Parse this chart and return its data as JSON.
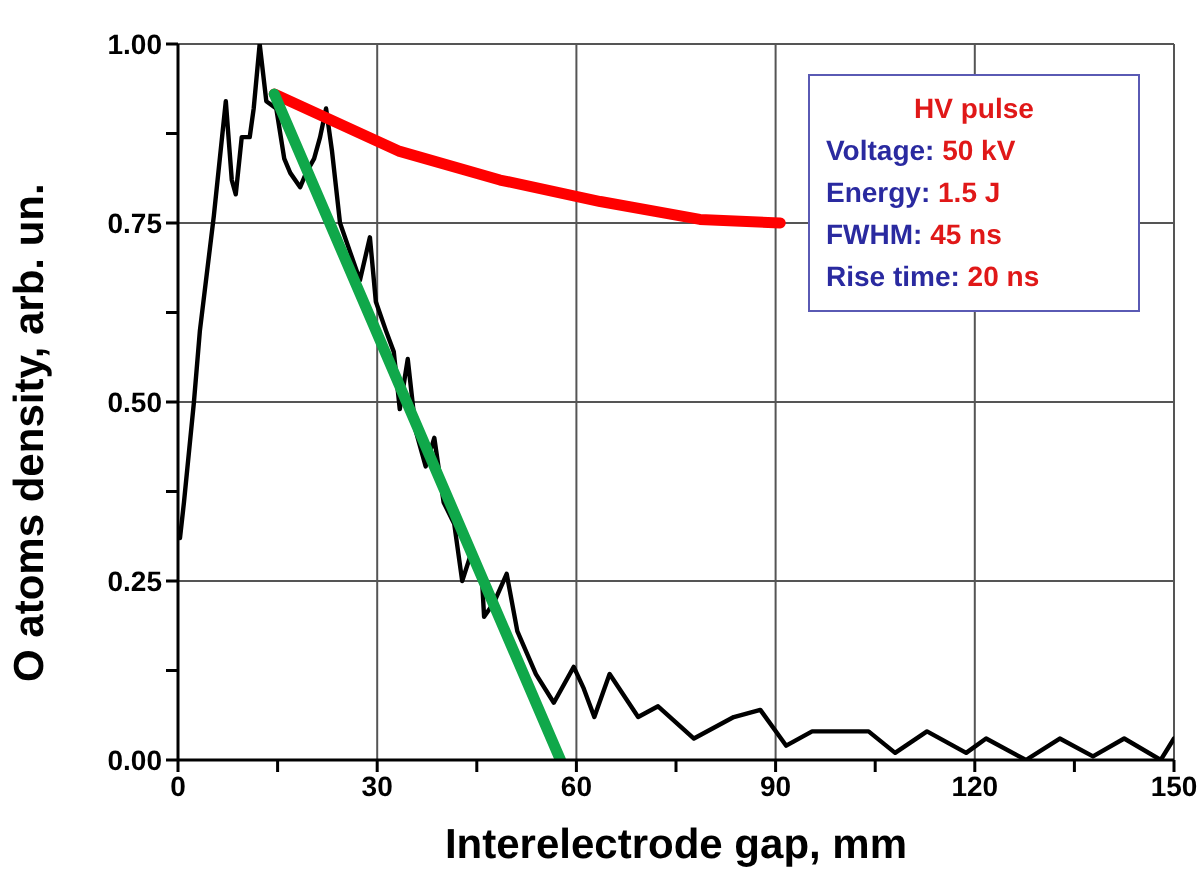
{
  "chart_data": {
    "type": "line",
    "xlabel": "Interelectrode gap, mm",
    "ylabel": "O atoms density, arb. un.",
    "xlim": [
      0,
      150
    ],
    "ylim": [
      0,
      1
    ],
    "xticks": [
      0,
      {
        "value": 15,
        "label": null
      },
      30,
      {
        "value": 45,
        "label": null
      },
      60,
      {
        "value": 75,
        "label": null
      },
      90,
      {
        "value": 105,
        "label": null
      },
      120,
      {
        "value": 135,
        "label": null
      },
      150
    ],
    "yticks": [
      "0.00",
      {
        "value": 0.125,
        "label": null
      },
      {
        "value": 0.25,
        "label": "0.25"
      },
      {
        "value": 0.375,
        "label": null
      },
      {
        "value": 0.5,
        "label": "0.50"
      },
      {
        "value": 0.625,
        "label": null
      },
      {
        "value": 0.75,
        "label": "0.75"
      },
      {
        "value": 0.875,
        "label": null
      },
      {
        "value": 1,
        "label": "1.00"
      }
    ],
    "grid": true,
    "marker": "none",
    "line_style": "solid",
    "annotations": [
      "HV pulse",
      "Voltage: 50 kV",
      "Energy: 1.5 J",
      "FWHM: 45 ns",
      "Rise time: 20 ns"
    ],
    "series": [
      {
        "color": "#000000",
        "x": [
          0.3,
          0.9,
          2.4,
          3.3,
          5.4,
          7.2,
          8.1,
          8.7,
          9.6,
          10.8,
          11.4,
          12.3,
          13.3,
          14.8,
          16,
          16.9,
          18.4,
          19.3,
          20.5,
          21.4,
          22.3,
          23.2,
          24.4,
          25.9,
          27.4,
          28.9,
          29.8,
          31.3,
          32.5,
          33.4,
          34.6,
          35.8,
          37.3,
          38.6,
          40,
          41.6,
          42.8,
          44.2,
          45.8,
          46.1,
          47.6,
          49.5,
          51.1,
          53.9,
          56.6,
          59.6,
          61.1,
          62.7,
          65,
          69.3,
          72.3,
          77.7,
          83.7,
          87.7,
          91.6,
          95.5,
          104,
          108,
          112.8,
          118.7,
          121.7,
          127.7,
          132.8,
          137.8,
          142.5,
          148,
          150
        ],
        "values": [
          0.31,
          0.36,
          0.5,
          0.6,
          0.76,
          0.92,
          0.81,
          0.79,
          0.87,
          0.87,
          0.91,
          1,
          0.92,
          0.91,
          0.84,
          0.82,
          0.8,
          0.82,
          0.84,
          0.87,
          0.91,
          0.85,
          0.75,
          0.71,
          0.67,
          0.73,
          0.64,
          0.6,
          0.57,
          0.49,
          0.56,
          0.46,
          0.41,
          0.45,
          0.36,
          0.33,
          0.25,
          0.29,
          0.25,
          0.2,
          0.22,
          0.26,
          0.18,
          0.12,
          0.08,
          0.13,
          0.1,
          0.06,
          0.12,
          0.06,
          0.075,
          0.03,
          0.06,
          0.07,
          0.02,
          0.04,
          0.04,
          0.01,
          0.04,
          0.01,
          0.03,
          0.0,
          0.03,
          0.005,
          0.03,
          0.0,
          0.03
        ]
      },
      {
        "color": "#ff0000",
        "x": [
          14.5,
          33.4,
          48.5,
          63.6,
          78.6,
          90.7
        ],
        "values": [
          0.93,
          0.85,
          0.81,
          0.78,
          0.755,
          0.75
        ]
      },
      {
        "color": "#10a84a",
        "x": [
          14.5,
          57.6
        ],
        "values": [
          0.93,
          0
        ]
      }
    ]
  }
}
